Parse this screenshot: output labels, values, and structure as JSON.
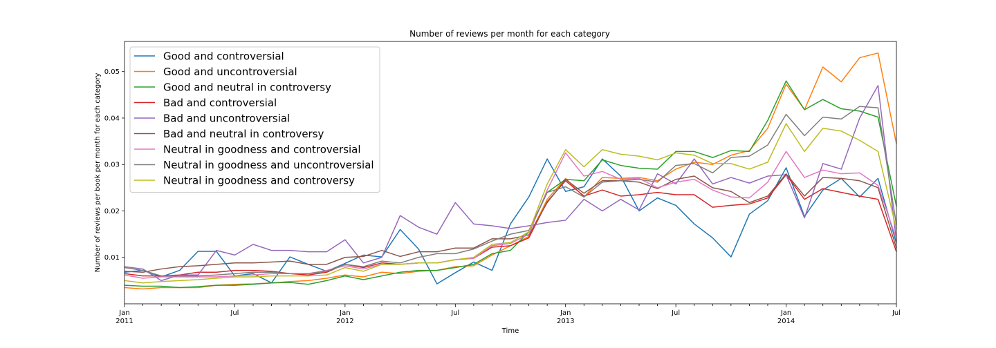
{
  "chart_data": {
    "type": "line",
    "title": "Number of reviews per month for each category",
    "xlabel": "Time",
    "ylabel": "Number of reviews per book per month for each category",
    "x_start": "2011-01",
    "x_end": "2014-07",
    "ylim": [
      0.0,
      0.0565
    ],
    "yticks": [
      0.01,
      0.02,
      0.03,
      0.04,
      0.05
    ],
    "ytick_labels": [
      "0.01",
      "0.02",
      "0.03",
      "0.04",
      "0.05"
    ],
    "xticks": [
      {
        "month_index": 0,
        "label": "Jan",
        "year": "2011"
      },
      {
        "month_index": 6,
        "label": "Jul",
        "year": ""
      },
      {
        "month_index": 12,
        "label": "Jan",
        "year": "2012"
      },
      {
        "month_index": 18,
        "label": "Jul",
        "year": ""
      },
      {
        "month_index": 24,
        "label": "Jan",
        "year": "2013"
      },
      {
        "month_index": 30,
        "label": "Jul",
        "year": ""
      },
      {
        "month_index": 36,
        "label": "Jan",
        "year": "2014"
      },
      {
        "month_index": 42,
        "label": "Jul",
        "year": ""
      }
    ],
    "legend_position": "upper-left",
    "grid": false,
    "series": [
      {
        "name": "Good and controversial",
        "color": "#1f77b4",
        "values": [
          0.0068,
          0.0072,
          0.0058,
          0.0072,
          0.0113,
          0.0113,
          0.006,
          0.0065,
          0.0045,
          0.0101,
          0.0085,
          0.007,
          0.0087,
          0.0105,
          0.0101,
          0.016,
          0.0118,
          0.0043,
          0.0067,
          0.009,
          0.0072,
          0.0172,
          0.023,
          0.0312,
          0.0242,
          0.0252,
          0.0312,
          0.0275,
          0.02,
          0.0228,
          0.0212,
          0.0172,
          0.0142,
          0.0101,
          0.0193,
          0.0222,
          0.0293,
          0.0188,
          0.0245,
          0.027,
          0.023,
          0.027,
          0.013
        ]
      },
      {
        "name": "Good and uncontroversial",
        "color": "#ff7f0e",
        "values": [
          0.0035,
          0.0032,
          0.0035,
          0.0035,
          0.0035,
          0.004,
          0.0042,
          0.0043,
          0.0045,
          0.0048,
          0.005,
          0.0055,
          0.0062,
          0.0058,
          0.0068,
          0.0065,
          0.007,
          0.0072,
          0.008,
          0.0082,
          0.0105,
          0.0125,
          0.0145,
          0.0225,
          0.027,
          0.023,
          0.0272,
          0.027,
          0.0272,
          0.0265,
          0.029,
          0.0305,
          0.03,
          0.032,
          0.033,
          0.0378,
          0.0473,
          0.0418,
          0.051,
          0.0478,
          0.053,
          0.054,
          0.0345
        ]
      },
      {
        "name": "Good and neutral in controversy",
        "color": "#2ca02c",
        "values": [
          0.004,
          0.0038,
          0.0038,
          0.0035,
          0.0037,
          0.004,
          0.004,
          0.0042,
          0.0045,
          0.0046,
          0.0042,
          0.005,
          0.006,
          0.0052,
          0.006,
          0.0068,
          0.0072,
          0.0072,
          0.0078,
          0.0085,
          0.0108,
          0.0115,
          0.0155,
          0.024,
          0.0268,
          0.0265,
          0.031,
          0.0298,
          0.0292,
          0.029,
          0.0328,
          0.0328,
          0.0315,
          0.033,
          0.0328,
          0.0395,
          0.048,
          0.0418,
          0.044,
          0.042,
          0.0415,
          0.0402,
          0.021
        ]
      },
      {
        "name": "Bad and controversial",
        "color": "#d62728",
        "values": [
          0.0065,
          0.006,
          0.006,
          0.0062,
          0.0068,
          0.0068,
          0.0072,
          0.0072,
          0.007,
          0.0065,
          0.0062,
          0.0068,
          0.0085,
          0.0078,
          0.0088,
          0.0085,
          0.0088,
          0.0088,
          0.0095,
          0.0098,
          0.0122,
          0.0125,
          0.0142,
          0.022,
          0.0265,
          0.0232,
          0.0245,
          0.0232,
          0.0235,
          0.024,
          0.0235,
          0.0235,
          0.0208,
          0.0212,
          0.0215,
          0.0228,
          0.0278,
          0.0225,
          0.0248,
          0.024,
          0.0232,
          0.0225,
          0.0112
        ]
      },
      {
        "name": "Bad and uncontroversial",
        "color": "#9467bd",
        "values": [
          0.008,
          0.0075,
          0.005,
          0.0062,
          0.0062,
          0.0115,
          0.0105,
          0.0128,
          0.0115,
          0.0115,
          0.0112,
          0.0112,
          0.0138,
          0.0088,
          0.01,
          0.019,
          0.0165,
          0.015,
          0.0218,
          0.0172,
          0.0168,
          0.0162,
          0.0168,
          0.0175,
          0.018,
          0.0225,
          0.02,
          0.0225,
          0.0202,
          0.028,
          0.0258,
          0.0312,
          0.0258,
          0.0272,
          0.026,
          0.0275,
          0.0278,
          0.0185,
          0.0302,
          0.029,
          0.04,
          0.047,
          0.0135
        ]
      },
      {
        "name": "Bad and neutral in controversy",
        "color": "#8c564b",
        "values": [
          0.007,
          0.0068,
          0.0075,
          0.008,
          0.0082,
          0.0085,
          0.0088,
          0.0088,
          0.009,
          0.0092,
          0.0085,
          0.0085,
          0.01,
          0.0102,
          0.0115,
          0.0102,
          0.0112,
          0.0112,
          0.012,
          0.012,
          0.014,
          0.014,
          0.0148,
          0.0218,
          0.0268,
          0.0238,
          0.0265,
          0.0265,
          0.0262,
          0.0248,
          0.0268,
          0.0275,
          0.025,
          0.0242,
          0.0218,
          0.0232,
          0.028,
          0.0232,
          0.0272,
          0.027,
          0.0265,
          0.025,
          0.012
        ]
      },
      {
        "name": "Neutral in goodness and controversial",
        "color": "#e377c2",
        "values": [
          0.0062,
          0.0055,
          0.0058,
          0.0058,
          0.0058,
          0.0058,
          0.006,
          0.0062,
          0.0065,
          0.0065,
          0.0065,
          0.0072,
          0.0082,
          0.0075,
          0.0085,
          0.0085,
          0.0088,
          0.0088,
          0.0095,
          0.0098,
          0.0125,
          0.013,
          0.015,
          0.0245,
          0.0325,
          0.0275,
          0.0285,
          0.0268,
          0.027,
          0.025,
          0.0262,
          0.0268,
          0.0245,
          0.023,
          0.0228,
          0.0262,
          0.0328,
          0.0272,
          0.0288,
          0.028,
          0.0282,
          0.0255,
          0.014
        ]
      },
      {
        "name": "Neutral in goodness and uncontroversial",
        "color": "#7f7f7f",
        "values": [
          0.0078,
          0.0072,
          0.006,
          0.006,
          0.006,
          0.0062,
          0.0065,
          0.0068,
          0.0068,
          0.0065,
          0.0065,
          0.007,
          0.0085,
          0.008,
          0.0092,
          0.0088,
          0.01,
          0.0108,
          0.0108,
          0.0118,
          0.0135,
          0.015,
          0.0158,
          0.024,
          0.0252,
          0.023,
          0.0262,
          0.0265,
          0.0268,
          0.0262,
          0.0298,
          0.0302,
          0.0282,
          0.0315,
          0.0318,
          0.0342,
          0.0408,
          0.0362,
          0.0402,
          0.0398,
          0.0425,
          0.0422,
          0.017
        ]
      },
      {
        "name": "Neutral in goodness and controversy",
        "color": "#bcbd22",
        "values": [
          0.005,
          0.0045,
          0.0048,
          0.005,
          0.0052,
          0.0055,
          0.0058,
          0.0058,
          0.006,
          0.006,
          0.006,
          0.0062,
          0.0078,
          0.007,
          0.0085,
          0.0085,
          0.0088,
          0.0088,
          0.0095,
          0.01,
          0.0128,
          0.0132,
          0.0155,
          0.0258,
          0.0332,
          0.0295,
          0.0332,
          0.0322,
          0.0318,
          0.031,
          0.0325,
          0.032,
          0.0302,
          0.0302,
          0.029,
          0.0305,
          0.0388,
          0.0328,
          0.0378,
          0.0372,
          0.0352,
          0.0328,
          0.016
        ]
      }
    ]
  }
}
